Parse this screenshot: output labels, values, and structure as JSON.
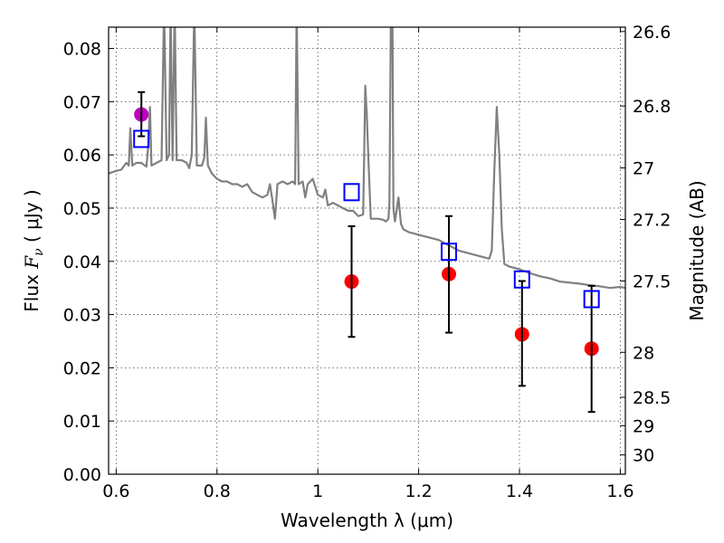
{
  "chart_data": {
    "type": "scatter",
    "xlabel": "Wavelength  λ (μm)",
    "ylabel": "Flux  F_ν  ( μJy )",
    "ylabel_parts": {
      "prefix": "Flux  ",
      "symbol": "F",
      "subscript": "ν",
      "suffix": "  ( μJy )"
    },
    "ylabel_right": "Magnitude (AB)",
    "xlim": [
      0.585,
      1.61
    ],
    "ylim": [
      0.0,
      0.084
    ],
    "grid": true,
    "x_ticks": [
      0.6,
      0.8,
      1.0,
      1.2,
      1.4,
      1.6
    ],
    "x_tick_labels": [
      "0.6",
      "0.8",
      "1",
      "1.2",
      "1.4",
      "1.6"
    ],
    "y_ticks": [
      0.0,
      0.01,
      0.02,
      0.03,
      0.04,
      0.05,
      0.06,
      0.07,
      0.08
    ],
    "y_tick_labels": [
      "0.00",
      "0.01",
      "0.02",
      "0.03",
      "0.04",
      "0.05",
      "0.06",
      "0.07",
      "0.08"
    ],
    "right_ticks": [
      {
        "label": "26.6",
        "mag": 26.6
      },
      {
        "label": "26.8",
        "mag": 26.8
      },
      {
        "label": "27",
        "mag": 27.0
      },
      {
        "label": "27.2",
        "mag": 27.2
      },
      {
        "label": "27.5",
        "mag": 27.5
      },
      {
        "label": "28",
        "mag": 28.0
      },
      {
        "label": "28.5",
        "mag": 28.5
      },
      {
        "label": "29",
        "mag": 29.0
      },
      {
        "label": "30",
        "mag": 30.0
      }
    ],
    "series": [
      {
        "kind": "line",
        "color": "#808080",
        "points": [
          [
            0.585,
            0.0565
          ],
          [
            0.6,
            0.057
          ],
          [
            0.61,
            0.0572
          ],
          [
            0.62,
            0.0585
          ],
          [
            0.625,
            0.058
          ],
          [
            0.628,
            0.065
          ],
          [
            0.632,
            0.058
          ],
          [
            0.64,
            0.0585
          ],
          [
            0.65,
            0.0585
          ],
          [
            0.66,
            0.0578
          ],
          [
            0.663,
            0.061
          ],
          [
            0.667,
            0.069
          ],
          [
            0.67,
            0.058
          ],
          [
            0.68,
            0.0585
          ],
          [
            0.69,
            0.059
          ],
          [
            0.695,
            0.088
          ],
          [
            0.7,
            0.059
          ],
          [
            0.705,
            0.06
          ],
          [
            0.708,
            0.088
          ],
          [
            0.712,
            0.059
          ],
          [
            0.716,
            0.088
          ],
          [
            0.72,
            0.059
          ],
          [
            0.73,
            0.059
          ],
          [
            0.74,
            0.0585
          ],
          [
            0.745,
            0.0575
          ],
          [
            0.75,
            0.06
          ],
          [
            0.755,
            0.088
          ],
          [
            0.76,
            0.058
          ],
          [
            0.77,
            0.058
          ],
          [
            0.775,
            0.0595
          ],
          [
            0.778,
            0.067
          ],
          [
            0.782,
            0.058
          ],
          [
            0.79,
            0.0565
          ],
          [
            0.8,
            0.0555
          ],
          [
            0.81,
            0.055
          ],
          [
            0.82,
            0.055
          ],
          [
            0.83,
            0.0545
          ],
          [
            0.84,
            0.0545
          ],
          [
            0.85,
            0.054
          ],
          [
            0.86,
            0.0545
          ],
          [
            0.87,
            0.053
          ],
          [
            0.88,
            0.0525
          ],
          [
            0.89,
            0.052
          ],
          [
            0.9,
            0.0525
          ],
          [
            0.905,
            0.0545
          ],
          [
            0.91,
            0.0515
          ],
          [
            0.915,
            0.048
          ],
          [
            0.92,
            0.0545
          ],
          [
            0.93,
            0.055
          ],
          [
            0.94,
            0.0545
          ],
          [
            0.95,
            0.055
          ],
          [
            0.955,
            0.0545
          ],
          [
            0.958,
            0.088
          ],
          [
            0.962,
            0.0545
          ],
          [
            0.97,
            0.055
          ],
          [
            0.975,
            0.052
          ],
          [
            0.98,
            0.0545
          ],
          [
            0.99,
            0.0555
          ],
          [
            1.0,
            0.0525
          ],
          [
            1.01,
            0.052
          ],
          [
            1.015,
            0.0535
          ],
          [
            1.02,
            0.0505
          ],
          [
            1.03,
            0.051
          ],
          [
            1.04,
            0.0505
          ],
          [
            1.05,
            0.05
          ],
          [
            1.06,
            0.0495
          ],
          [
            1.07,
            0.0495
          ],
          [
            1.08,
            0.0485
          ],
          [
            1.09,
            0.0488
          ],
          [
            1.092,
            0.06
          ],
          [
            1.094,
            0.073
          ],
          [
            1.097,
            0.068
          ],
          [
            1.1,
            0.06
          ],
          [
            1.105,
            0.048
          ],
          [
            1.11,
            0.048
          ],
          [
            1.12,
            0.048
          ],
          [
            1.13,
            0.0478
          ],
          [
            1.135,
            0.0475
          ],
          [
            1.14,
            0.048
          ],
          [
            1.142,
            0.051
          ],
          [
            1.145,
            0.088
          ],
          [
            1.148,
            0.088
          ],
          [
            1.15,
            0.05
          ],
          [
            1.153,
            0.0475
          ],
          [
            1.16,
            0.052
          ],
          [
            1.165,
            0.047
          ],
          [
            1.17,
            0.046
          ],
          [
            1.18,
            0.0455
          ],
          [
            1.2,
            0.045
          ],
          [
            1.22,
            0.0445
          ],
          [
            1.24,
            0.044
          ],
          [
            1.26,
            0.043
          ],
          [
            1.28,
            0.042
          ],
          [
            1.3,
            0.0415
          ],
          [
            1.32,
            0.041
          ],
          [
            1.34,
            0.0405
          ],
          [
            1.345,
            0.042
          ],
          [
            1.35,
            0.057
          ],
          [
            1.355,
            0.069
          ],
          [
            1.36,
            0.06
          ],
          [
            1.365,
            0.046
          ],
          [
            1.37,
            0.0395
          ],
          [
            1.38,
            0.039
          ],
          [
            1.4,
            0.0385
          ],
          [
            1.42,
            0.0378
          ],
          [
            1.44,
            0.0372
          ],
          [
            1.46,
            0.0368
          ],
          [
            1.48,
            0.0362
          ],
          [
            1.5,
            0.036
          ],
          [
            1.52,
            0.0358
          ],
          [
            1.54,
            0.0355
          ],
          [
            1.56,
            0.0353
          ],
          [
            1.58,
            0.035
          ],
          [
            1.6,
            0.0352
          ],
          [
            1.61,
            0.035
          ]
        ]
      },
      {
        "kind": "markers",
        "marker": "circle",
        "color": "#bf00bf",
        "points": [
          {
            "x": 0.65,
            "y": 0.0676
          }
        ]
      },
      {
        "kind": "markers",
        "marker": "circle",
        "color": "#ff0000",
        "points": [
          {
            "x": 1.067,
            "y": 0.0362
          },
          {
            "x": 1.26,
            "y": 0.0376
          },
          {
            "x": 1.405,
            "y": 0.0263
          },
          {
            "x": 1.543,
            "y": 0.0236
          }
        ]
      },
      {
        "kind": "markers",
        "marker": "square",
        "color": "#0000ff",
        "points": [
          {
            "x": 0.65,
            "y": 0.063
          },
          {
            "x": 1.067,
            "y": 0.053
          },
          {
            "x": 1.26,
            "y": 0.0418
          },
          {
            "x": 1.405,
            "y": 0.0366
          },
          {
            "x": 1.543,
            "y": 0.0329
          }
        ]
      },
      {
        "kind": "errorbars",
        "color": "#000000",
        "bars": [
          {
            "x": 0.65,
            "low": 0.0635,
            "high": 0.0718
          },
          {
            "x": 1.067,
            "low": 0.0258,
            "high": 0.0466
          },
          {
            "x": 1.26,
            "low": 0.0266,
            "high": 0.0485
          },
          {
            "x": 1.405,
            "low": 0.0166,
            "high": 0.0363
          },
          {
            "x": 1.543,
            "low": 0.0117,
            "high": 0.0354
          }
        ]
      }
    ]
  }
}
